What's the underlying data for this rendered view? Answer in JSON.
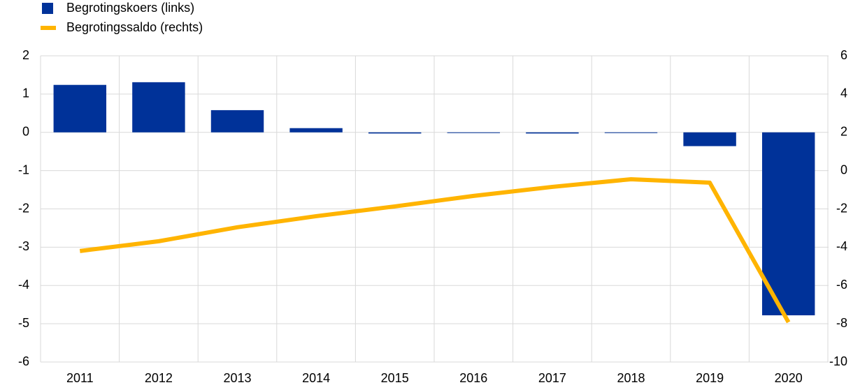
{
  "chart_data": {
    "type": "bar-line",
    "categories": [
      "2011",
      "2012",
      "2013",
      "2014",
      "2015",
      "2016",
      "2017",
      "2018",
      "2019",
      "2020"
    ],
    "series": [
      {
        "name": "Begrotingskoers (links)",
        "type": "bar",
        "color": "#003299",
        "axis": "y",
        "values": [
          1.24,
          1.31,
          0.58,
          0.11,
          -0.03,
          -0.01,
          -0.03,
          -0.01,
          -0.36,
          -4.78
        ]
      },
      {
        "name": "Begrotingssaldo (rechts)",
        "type": "line",
        "color": "#ffb400",
        "axis": "y2",
        "values": [
          -4.2,
          -3.69,
          -2.96,
          -2.38,
          -1.87,
          -1.32,
          -0.85,
          -0.45,
          -0.63,
          -7.92
        ]
      }
    ],
    "ylim": [
      -6,
      2
    ],
    "yticks": [
      -6,
      -5,
      -4,
      -3,
      -2,
      -1,
      0,
      1,
      2
    ],
    "y2lim": [
      -10,
      6
    ],
    "y2ticks": [
      -10,
      -8,
      -6,
      -4,
      -2,
      0,
      2,
      4,
      6
    ],
    "grid": true,
    "legend": "top-left"
  }
}
